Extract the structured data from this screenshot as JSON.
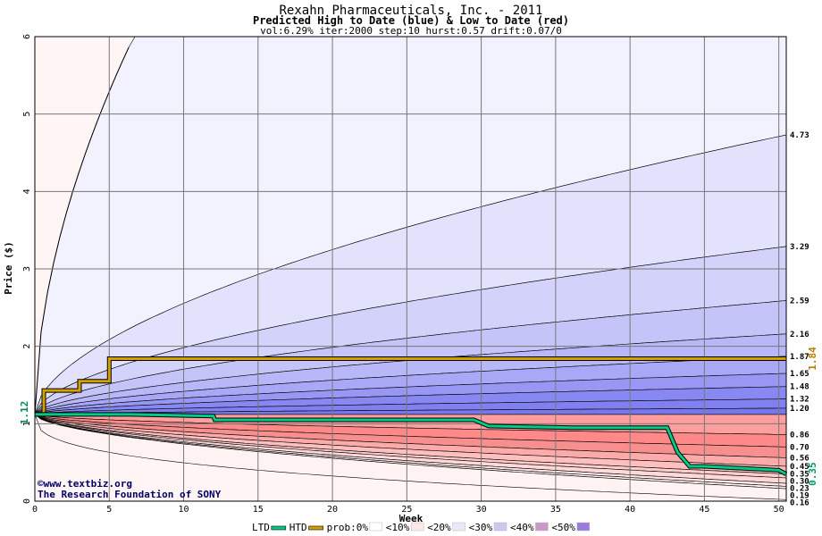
{
  "chart_data": {
    "type": "area",
    "title": "Rexahn Pharmaceuticals, Inc. - 2011",
    "subtitle": "Predicted High to Date (blue) &  Low to Date (red)",
    "params": "vol:6.29% iter:2000 step:10 hurst:0.57 drift:0.07/0",
    "xlabel": "Week",
    "ylabel": "Price ($)",
    "xlim": [
      0,
      50.5
    ],
    "ylim": [
      0,
      6
    ],
    "x_ticks": [
      "0",
      "5",
      "10",
      "15",
      "20",
      "25",
      "30",
      "35",
      "40",
      "45",
      "50"
    ],
    "y_ticks": [
      "0",
      "1",
      "2",
      "3",
      "4",
      "5",
      "6"
    ],
    "grid": true,
    "start_price": 1.12,
    "start_price_label": "1.12",
    "high_bands_end": [
      1.2,
      1.32,
      1.48,
      1.65,
      1.87,
      2.16,
      2.59,
      3.29,
      4.73
    ],
    "high_bands_labels": [
      "1.20",
      "1.32",
      "1.48",
      "1.65",
      "1.87",
      "2.16",
      "2.59",
      "3.29",
      "4.73"
    ],
    "low_bands_end": [
      0.86,
      0.7,
      0.56,
      0.45,
      0.35,
      0.3,
      0.23,
      0.19,
      0.16
    ],
    "low_bands_labels": [
      "0.86",
      "0.70",
      "0.56",
      "0.45",
      "0.35",
      "0.30",
      "0.23",
      "0.19",
      "0.16"
    ],
    "htd_series": {
      "name": "HTD",
      "color": "#d4a000",
      "x": [
        0,
        0.6,
        0.6,
        3,
        3,
        5,
        5,
        50.5
      ],
      "y": [
        1.12,
        1.12,
        1.43,
        1.43,
        1.55,
        1.55,
        1.84,
        1.84
      ],
      "end_label": "1.84"
    },
    "ltd_series": {
      "name": "LTD",
      "color": "#00cc88",
      "x": [
        0,
        6.5,
        12,
        12.1,
        29.5,
        30.5,
        36,
        42.5,
        43.2,
        44,
        45,
        50,
        50.5
      ],
      "y": [
        1.12,
        1.12,
        1.1,
        1.05,
        1.05,
        0.97,
        0.95,
        0.95,
        0.63,
        0.45,
        0.45,
        0.4,
        0.35
      ],
      "end_label": "0.35"
    },
    "legend": {
      "placement": "bottom",
      "items": [
        "LTD",
        "HTD",
        "prob:0%",
        "<10%",
        "<20%",
        "<30%",
        "<40%",
        "<50%"
      ],
      "swatch_colors": [
        "#00cc88",
        "#d4a000",
        "#ffffff",
        "#fde8e8",
        "#e8e8fb",
        "#c8c8f0",
        "#c898c8",
        "#9b7bdc"
      ]
    },
    "colors": {
      "background": "#ffffff",
      "grid": "#777777",
      "high_band_colors": [
        "#8080f0",
        "#8888f2",
        "#9898f4",
        "#a8a8f6",
        "#b8b8f8",
        "#c4c4f8",
        "#d2d2fa",
        "#e2e2fc",
        "#f2f2fe"
      ],
      "low_band_colors": [
        "#ff9e9e",
        "#ff8888",
        "#f88f8f",
        "#fcaaaa",
        "#ffbfbf",
        "#ffcccc",
        "#ffd8d8",
        "#ffe6e6",
        "#fff2f2"
      ]
    }
  },
  "credits": {
    "site": "©www.textbiz.org",
    "org": "The Research Foundation of SONY"
  }
}
